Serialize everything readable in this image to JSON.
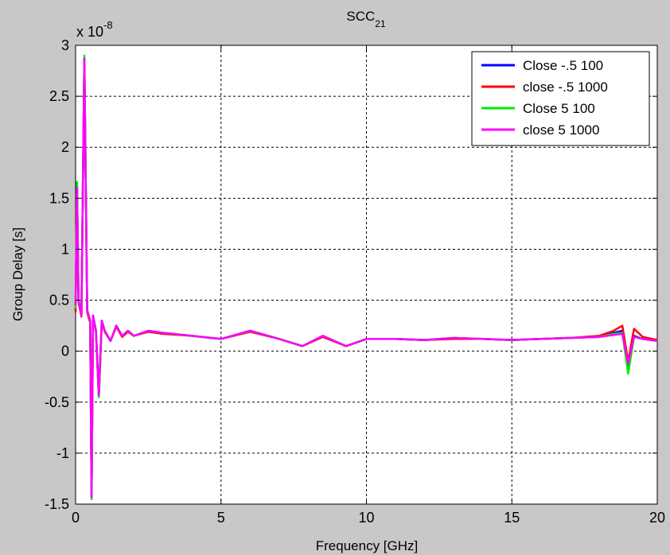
{
  "chart_data": {
    "type": "line",
    "title_main": "SCC",
    "title_sub": "21",
    "xlabel": "Frequency [GHz]",
    "ylabel": "Group Delay [s]",
    "y_exponent_base": "x 10",
    "y_exponent_power": "-8",
    "xlim": [
      0,
      20
    ],
    "ylim": [
      -1.5,
      3
    ],
    "xticks": [
      0,
      5,
      10,
      15,
      20
    ],
    "xtick_labels": [
      "0",
      "5",
      "10",
      "15",
      "20"
    ],
    "yticks": [
      -1.5,
      -1,
      -0.5,
      0,
      0.5,
      1,
      1.5,
      2,
      2.5,
      3
    ],
    "ytick_labels": [
      "-1.5",
      "-1",
      "-0.5",
      "0",
      "0.5",
      "1",
      "1.5",
      "2",
      "2.5",
      "3"
    ],
    "grid": true,
    "legend_position": "top-right",
    "series": [
      {
        "name": "Close -.5 100",
        "color": "#0000ff",
        "x": [
          0,
          0.05,
          0.1,
          0.2,
          0.3,
          0.4,
          0.5,
          0.55,
          0.6,
          0.7,
          0.8,
          0.9,
          1.0,
          1.2,
          1.4,
          1.6,
          1.8,
          2.0,
          2.5,
          3.0,
          4.0,
          5.0,
          6.0,
          7.0,
          7.8,
          8.5,
          9.3,
          10.0,
          11.0,
          12.0,
          13.0,
          14.0,
          15.0,
          16.0,
          17.0,
          18.0,
          18.5,
          18.8,
          19.0,
          19.2,
          19.5,
          20.0
        ],
        "y": [
          0.4,
          1.65,
          0.5,
          0.35,
          2.88,
          0.4,
          0.3,
          -1.45,
          0.35,
          0.2,
          -0.45,
          0.3,
          0.2,
          0.1,
          0.25,
          0.15,
          0.2,
          0.15,
          0.2,
          0.18,
          0.15,
          0.12,
          0.2,
          0.12,
          0.05,
          0.15,
          0.05,
          0.12,
          0.12,
          0.11,
          0.13,
          0.12,
          0.11,
          0.12,
          0.13,
          0.14,
          0.18,
          0.2,
          -0.15,
          0.15,
          0.12,
          0.1
        ]
      },
      {
        "name": "close -.5 1000",
        "color": "#ff0000",
        "x": [
          0,
          0.05,
          0.1,
          0.2,
          0.3,
          0.4,
          0.5,
          0.55,
          0.6,
          0.7,
          0.8,
          0.9,
          1.0,
          1.2,
          1.4,
          1.6,
          1.8,
          2.0,
          2.5,
          3.0,
          4.0,
          5.0,
          6.0,
          7.0,
          7.8,
          8.5,
          9.3,
          10.0,
          11.0,
          12.0,
          13.0,
          14.0,
          15.0,
          16.0,
          17.0,
          18.0,
          18.5,
          18.8,
          19.0,
          19.2,
          19.5,
          20.0
        ],
        "y": [
          0.38,
          1.63,
          0.48,
          0.34,
          2.86,
          0.38,
          0.28,
          -1.44,
          0.33,
          0.19,
          -0.44,
          0.29,
          0.19,
          0.1,
          0.24,
          0.14,
          0.19,
          0.15,
          0.19,
          0.17,
          0.15,
          0.12,
          0.19,
          0.12,
          0.05,
          0.14,
          0.05,
          0.12,
          0.12,
          0.11,
          0.12,
          0.12,
          0.11,
          0.12,
          0.13,
          0.15,
          0.2,
          0.25,
          -0.1,
          0.22,
          0.14,
          0.11
        ]
      },
      {
        "name": "Close 5 100",
        "color": "#00ee00",
        "x": [
          0,
          0.05,
          0.1,
          0.2,
          0.3,
          0.4,
          0.5,
          0.55,
          0.6,
          0.7,
          0.8,
          0.9,
          1.0,
          1.2,
          1.4,
          1.6,
          1.8,
          2.0,
          2.5,
          3.0,
          4.0,
          5.0,
          6.0,
          7.0,
          7.8,
          8.5,
          9.3,
          10.0,
          11.0,
          12.0,
          13.0,
          14.0,
          15.0,
          16.0,
          17.0,
          18.0,
          18.5,
          18.8,
          19.0,
          19.2,
          19.5,
          20.0
        ],
        "y": [
          0.42,
          1.66,
          0.5,
          0.36,
          2.9,
          0.4,
          0.3,
          -1.45,
          0.35,
          0.2,
          -0.45,
          0.3,
          0.2,
          0.1,
          0.25,
          0.15,
          0.2,
          0.15,
          0.2,
          0.18,
          0.15,
          0.12,
          0.2,
          0.12,
          0.05,
          0.15,
          0.05,
          0.12,
          0.12,
          0.11,
          0.13,
          0.12,
          0.11,
          0.12,
          0.13,
          0.14,
          0.17,
          0.18,
          -0.22,
          0.14,
          0.12,
          0.1
        ]
      },
      {
        "name": "close 5 1000",
        "color": "#ff00ff",
        "x": [
          0,
          0.05,
          0.1,
          0.2,
          0.3,
          0.4,
          0.5,
          0.55,
          0.6,
          0.7,
          0.8,
          0.9,
          1.0,
          1.2,
          1.4,
          1.6,
          1.8,
          2.0,
          2.5,
          3.0,
          4.0,
          5.0,
          6.0,
          7.0,
          7.8,
          8.5,
          9.3,
          10.0,
          11.0,
          12.0,
          13.0,
          14.0,
          15.0,
          16.0,
          17.0,
          18.0,
          18.5,
          18.8,
          19.0,
          19.2,
          19.5,
          20.0
        ],
        "y": [
          0.45,
          1.6,
          0.5,
          0.35,
          2.87,
          0.4,
          0.3,
          -1.43,
          0.35,
          0.2,
          -0.43,
          0.3,
          0.2,
          0.1,
          0.25,
          0.15,
          0.2,
          0.15,
          0.2,
          0.18,
          0.15,
          0.12,
          0.2,
          0.12,
          0.05,
          0.15,
          0.05,
          0.12,
          0.12,
          0.11,
          0.13,
          0.12,
          0.11,
          0.12,
          0.13,
          0.14,
          0.16,
          0.17,
          -0.12,
          0.14,
          0.12,
          0.1
        ]
      }
    ]
  }
}
